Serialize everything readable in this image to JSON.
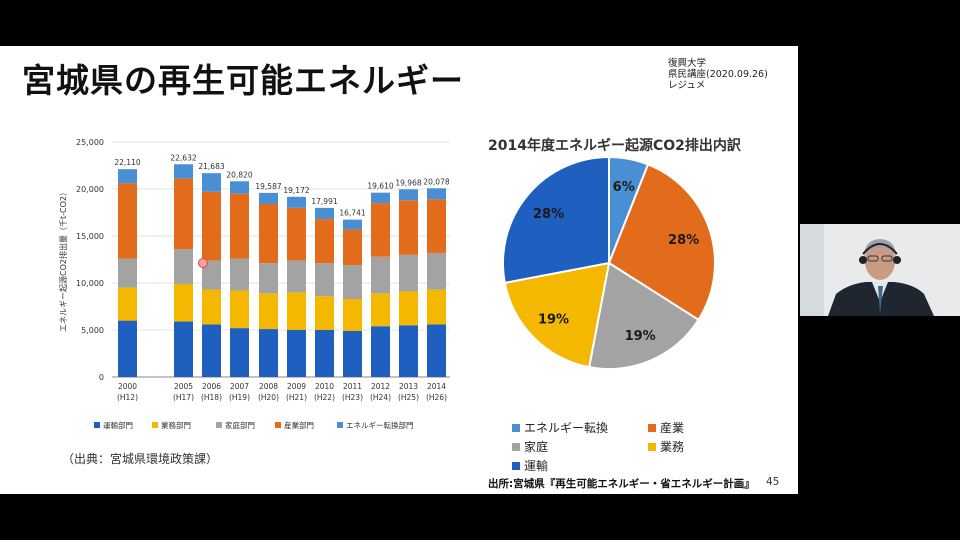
{
  "slide": {
    "title": "宮城県の再生可能エネルギー",
    "meta_lines": [
      "復興大学",
      "県民講座(2020.09.26)",
      "レジュメ"
    ],
    "source_left": "（出典：宮城県環境政策課）",
    "source_right": "出所:宮城県『再生可能エネルギー・省エネルギー計画』",
    "page_number": "45"
  },
  "pie_title": "2014年度エネルギー起源CO2排出内訳",
  "colors": {
    "運輸部門": "#1f5fbf",
    "業務部門": "#f5b800",
    "家庭部門": "#a3a3a3",
    "産業部門": "#e36c1c",
    "エネルギー転換部門": "#4a8fd4"
  },
  "chart_data": [
    {
      "type": "bar",
      "stacked": true,
      "ylabel": "エネルギー起源CO2排出量（千t-CO2）",
      "ylim": [
        0,
        25000
      ],
      "yticks": [
        "0",
        "5,000",
        "10,000",
        "15,000",
        "20,000",
        "25,000"
      ],
      "grid": true,
      "legend_position": "bottom",
      "categories": [
        "2000",
        "2005",
        "2006",
        "2007",
        "2008",
        "2009",
        "2010",
        "2011",
        "2012",
        "2013",
        "2014"
      ],
      "category_sublabels": [
        "(H12)",
        "(H17)",
        "(H18)",
        "(H19)",
        "(H20)",
        "(H21)",
        "(H22)",
        "(H23)",
        "(H24)",
        "(H25)",
        "(H26)"
      ],
      "total_labels": [
        "22,110",
        "22,632",
        "21,683",
        "20,820",
        "19,587",
        "19,172",
        "17,991",
        "16,741",
        "19,610",
        "19,968",
        "20,078"
      ],
      "series": [
        {
          "name": "運輸部門",
          "values": [
            6000,
            5900,
            5600,
            5200,
            5100,
            5000,
            5000,
            4900,
            5400,
            5500,
            5600
          ]
        },
        {
          "name": "業務部門",
          "values": [
            3500,
            4000,
            3700,
            4000,
            3800,
            4000,
            3600,
            3400,
            3500,
            3600,
            3700
          ]
        },
        {
          "name": "家庭部門",
          "values": [
            3100,
            3700,
            3100,
            3400,
            3200,
            3400,
            3500,
            3600,
            3900,
            3900,
            3900
          ]
        },
        {
          "name": "産業部門",
          "values": [
            8000,
            7500,
            7300,
            6900,
            6300,
            5600,
            4700,
            3800,
            5700,
            5800,
            5700
          ]
        },
        {
          "name": "エネルギー転換部門",
          "values": [
            1510,
            1532,
            1983,
            1320,
            1187,
            1172,
            1191,
            1041,
            1110,
            1168,
            1178
          ]
        }
      ]
    },
    {
      "type": "pie",
      "title": "2014年度エネルギー起源CO2排出内訳",
      "legend_position": "bottom",
      "slices": [
        {
          "name": "エネルギー転換",
          "value": 6,
          "label": "6%"
        },
        {
          "name": "産業",
          "value": 28,
          "label": "28%"
        },
        {
          "name": "家庭",
          "value": 19,
          "label": "19%"
        },
        {
          "name": "業務",
          "value": 19,
          "label": "19%"
        },
        {
          "name": "運輸",
          "value": 28,
          "label": "28%"
        }
      ],
      "legend": [
        "エネルギー転換",
        "産業",
        "家庭",
        "業務",
        "運輸"
      ]
    }
  ]
}
